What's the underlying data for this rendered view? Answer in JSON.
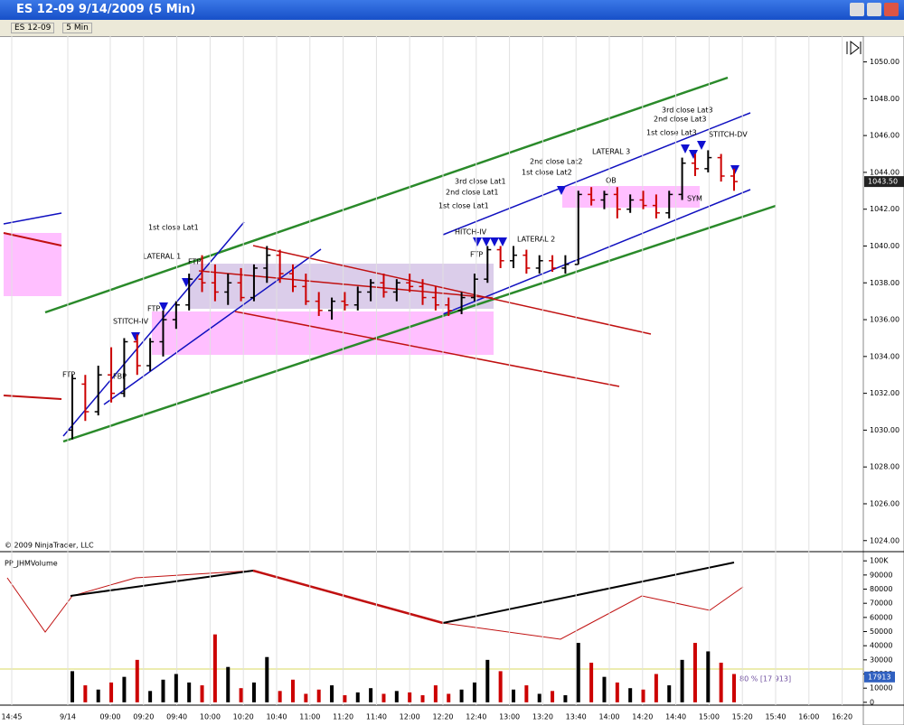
{
  "window": {
    "title": "ES 12-09  9/14/2009 (5 Min)",
    "toolbar": {
      "instrument": "ES 12-09",
      "interval": "5 Min"
    }
  },
  "chart_data": [
    {
      "type": "ohlc",
      "up_color": "#000000",
      "down_color": "#cc0000",
      "open": [
        1030.0,
        1032.5,
        1031.0,
        1033.0,
        1032.0,
        1034.8,
        1033.5,
        1034.8,
        1036.0,
        1036.8,
        1038.2,
        1038.0,
        1037.5,
        1038.0,
        1037.2,
        1038.8,
        1039.5,
        1038.5,
        1037.8,
        1037.0,
        1036.5,
        1037.0,
        1036.8,
        1037.5,
        1038.0,
        1037.5,
        1038.0,
        1037.8,
        1037.2,
        1036.8,
        1036.5,
        1037.2,
        1038.2,
        1039.8,
        1039.2,
        1039.5,
        1038.8,
        1039.2,
        1038.8,
        1039.0,
        1042.8,
        1042.5,
        1042.8,
        1042.0,
        1042.5,
        1042.2,
        1041.8,
        1042.8,
        1044.5,
        1044.2,
        1044.8,
        1043.8
      ],
      "high": [
        1033.0,
        1033.0,
        1033.5,
        1034.5,
        1035.0,
        1035.2,
        1035.0,
        1036.5,
        1037.0,
        1038.5,
        1039.5,
        1039.0,
        1038.5,
        1038.8,
        1039.0,
        1040.0,
        1039.8,
        1039.0,
        1038.5,
        1037.5,
        1037.2,
        1037.5,
        1037.8,
        1038.2,
        1038.5,
        1038.2,
        1038.5,
        1038.2,
        1037.8,
        1037.2,
        1037.5,
        1038.5,
        1040.0,
        1040.0,
        1040.0,
        1039.8,
        1039.5,
        1039.5,
        1039.5,
        1043.0,
        1043.2,
        1043.0,
        1043.2,
        1042.8,
        1043.0,
        1042.8,
        1043.0,
        1044.8,
        1045.0,
        1045.2,
        1045.0,
        1044.2
      ],
      "low": [
        1029.5,
        1030.5,
        1030.8,
        1031.5,
        1031.8,
        1033.0,
        1033.2,
        1034.0,
        1035.5,
        1036.5,
        1037.5,
        1037.0,
        1036.8,
        1037.0,
        1037.0,
        1038.0,
        1038.0,
        1037.5,
        1036.8,
        1036.2,
        1036.0,
        1036.5,
        1036.5,
        1037.0,
        1037.2,
        1037.0,
        1037.5,
        1036.8,
        1036.5,
        1036.2,
        1036.3,
        1037.0,
        1038.0,
        1038.8,
        1038.8,
        1038.5,
        1038.5,
        1038.6,
        1038.5,
        1039.0,
        1042.2,
        1042.0,
        1041.5,
        1041.8,
        1042.0,
        1041.5,
        1041.5,
        1042.5,
        1043.8,
        1044.0,
        1043.5,
        1043.0
      ],
      "close": [
        1032.8,
        1031.0,
        1033.0,
        1032.0,
        1034.8,
        1033.5,
        1034.8,
        1036.0,
        1036.8,
        1038.2,
        1038.0,
        1037.5,
        1038.0,
        1037.2,
        1038.8,
        1039.5,
        1038.5,
        1037.8,
        1037.0,
        1036.5,
        1037.0,
        1036.8,
        1037.5,
        1038.0,
        1037.5,
        1038.0,
        1037.8,
        1037.2,
        1036.8,
        1036.5,
        1037.2,
        1038.2,
        1039.8,
        1039.2,
        1039.5,
        1038.8,
        1039.2,
        1038.8,
        1039.0,
        1042.8,
        1042.5,
        1042.8,
        1042.0,
        1042.5,
        1042.2,
        1041.8,
        1042.8,
        1044.5,
        1044.2,
        1044.8,
        1043.8,
        1043.5
      ],
      "ylim": [
        1023.4,
        1051.4
      ],
      "yticks": [
        {
          "value": 1024,
          "label": "1024.00"
        },
        {
          "value": 1026,
          "label": "1026.00"
        },
        {
          "value": 1028,
          "label": "1028.00"
        },
        {
          "value": 1030,
          "label": "1030.00"
        },
        {
          "value": 1032,
          "label": "1032.00"
        },
        {
          "value": 1034,
          "label": "1034.00"
        },
        {
          "value": 1036,
          "label": "1036.00"
        },
        {
          "value": 1038,
          "label": "1038.00"
        },
        {
          "value": 1040,
          "label": "1040.00"
        },
        {
          "value": 1042,
          "label": "1042.00"
        },
        {
          "value": 1044,
          "label": "1044.00"
        },
        {
          "value": 1046,
          "label": "1046.00"
        },
        {
          "value": 1048,
          "label": "1048.00"
        },
        {
          "value": 1050,
          "label": "1050.00"
        }
      ],
      "last_price": {
        "value": 1043.5,
        "label": "1043.50"
      },
      "copyright": "© 2009 NinjaTrader, LLC",
      "annotations": [
        "FTP",
        "FBP",
        "STITCH-IV",
        "FTP",
        "1st close Lat1",
        "LATERAL 1",
        "FTP",
        "1st close Lat1",
        "2nd close Lat1",
        "3rd close Lat1",
        "HITCH-IV",
        "FTP",
        "LATERAL 2",
        "2nd close Lat2",
        "1st close Lat2",
        "LATERAL 3",
        "OB",
        "SYM",
        "3rd close Lat3",
        "2nd close Lat3",
        "1st close Lat3",
        "STITCH-DV"
      ]
    },
    {
      "type": "bar",
      "title": "PP_JHMVolume",
      "values": [
        22000,
        12000,
        9000,
        14000,
        18000,
        30000,
        8000,
        16000,
        20000,
        14000,
        12000,
        48000,
        25000,
        10000,
        14000,
        32000,
        8000,
        16000,
        6000,
        9000,
        12000,
        5000,
        7000,
        10000,
        6000,
        8000,
        7000,
        5000,
        12000,
        6000,
        9000,
        14000,
        30000,
        22000,
        9000,
        12000,
        6000,
        8000,
        5000,
        42000,
        28000,
        18000,
        14000,
        10000,
        9000,
        20000,
        12000,
        30000,
        42000,
        36000,
        28000,
        20000
      ],
      "ylim": [
        -2000,
        106500
      ],
      "yticks": [
        0,
        10000,
        20000,
        30000,
        40000,
        50000,
        60000,
        70000,
        80000,
        90000,
        {
          "value": 100000,
          "label": "100K"
        }
      ],
      "marker": {
        "value": 17913
      },
      "annotation": "80 % [17 913]"
    }
  ],
  "time_axis": {
    "labels": [
      "14:45",
      "9/14",
      "09:00",
      "09:20",
      "09:40",
      "10:00",
      "10:20",
      "10:40",
      "11:00",
      "11:20",
      "11:40",
      "12:00",
      "12:20",
      "12:40",
      "13:00",
      "13:20",
      "13:40",
      "14:00",
      "14:20",
      "14:40",
      "15:00",
      "15:20",
      "15:40",
      "16:00",
      "16:20"
    ]
  }
}
